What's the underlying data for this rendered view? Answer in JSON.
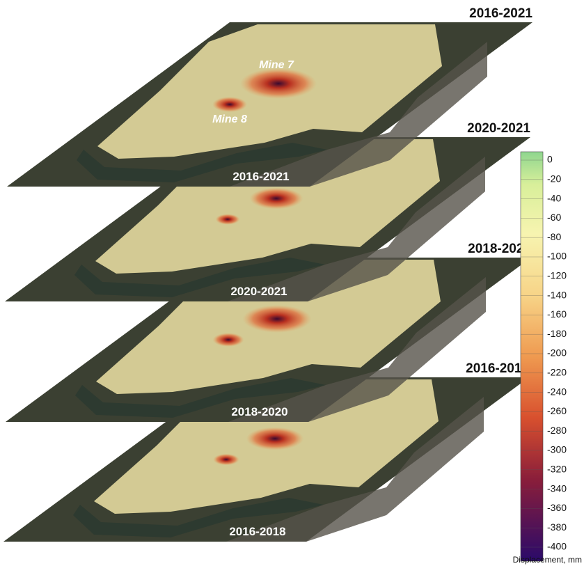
{
  "layers": [
    {
      "period": "2016-2021",
      "inner_label": "2016-2021",
      "annotations": [
        "Mine 7",
        "Mine 8"
      ]
    },
    {
      "period": "2020-2021",
      "inner_label": "2020-2021"
    },
    {
      "period": "2018-2020",
      "inner_label": "2018-2020"
    },
    {
      "period": "2016-2018",
      "inner_label": "2016-2018"
    }
  ],
  "colorbar": {
    "lim": [
      0,
      -400
    ],
    "ticks": [
      0,
      -20,
      -40,
      -60,
      -80,
      -100,
      -120,
      -140,
      -160,
      -180,
      -200,
      -220,
      -240,
      -260,
      -280,
      -300,
      -320,
      -340,
      -360,
      -380,
      -400
    ],
    "label": "Displacement, mm"
  }
}
